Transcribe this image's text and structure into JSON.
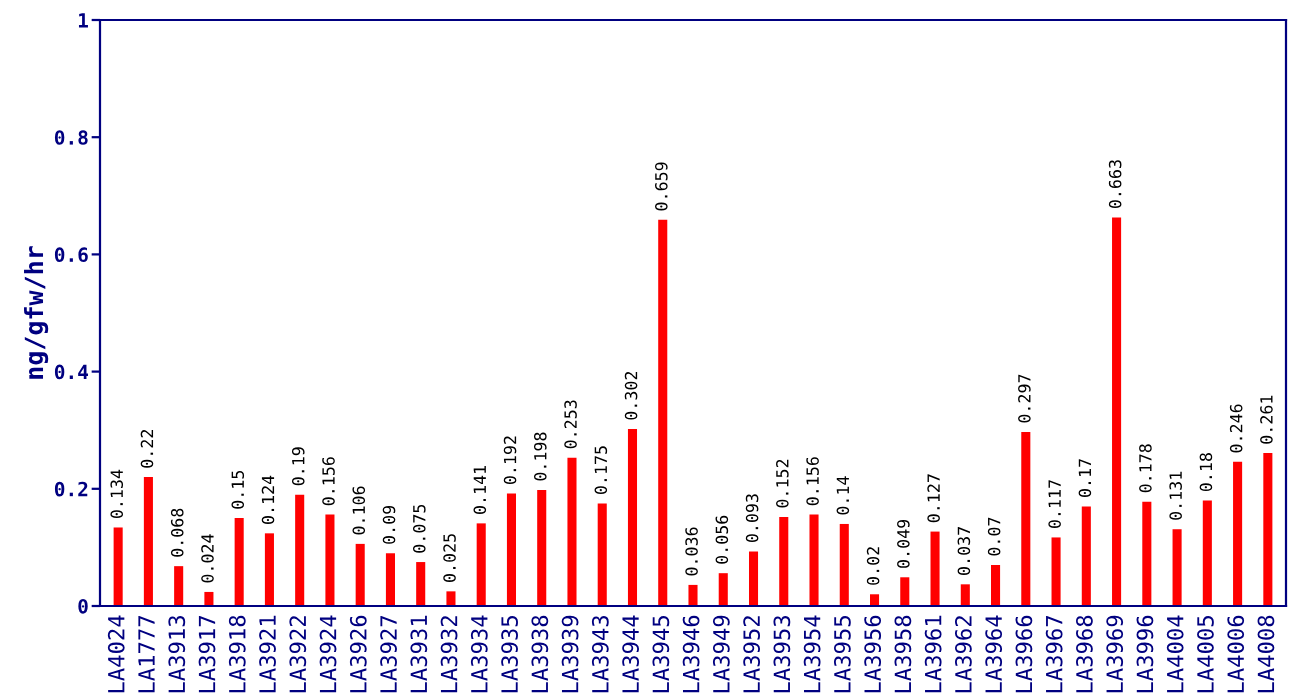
{
  "chart_data": {
    "type": "bar",
    "ylabel": "ng/gfw/hr",
    "categories": [
      "LA4024",
      "LA1777",
      "LA3913",
      "LA3917",
      "LA3918",
      "LA3921",
      "LA3922",
      "LA3924",
      "LA3926",
      "LA3927",
      "LA3931",
      "LA3932",
      "LA3934",
      "LA3935",
      "LA3938",
      "LA3939",
      "LA3943",
      "LA3944",
      "LA3945",
      "LA3946",
      "LA3949",
      "LA3952",
      "LA3953",
      "LA3954",
      "LA3955",
      "LA3956",
      "LA3958",
      "LA3961",
      "LA3962",
      "LA3964",
      "LA3966",
      "LA3967",
      "LA3968",
      "LA3969",
      "LA3996",
      "LA4004",
      "LA4005",
      "LA4006",
      "LA4008"
    ],
    "values": [
      0.134,
      0.22,
      0.068,
      0.024,
      0.15,
      0.124,
      0.19,
      0.156,
      0.106,
      0.09,
      0.075,
      0.025,
      0.141,
      0.192,
      0.198,
      0.253,
      0.175,
      0.302,
      0.659,
      0.036,
      0.056,
      0.093,
      0.152,
      0.156,
      0.14,
      0.02,
      0.049,
      0.127,
      0.037,
      0.07,
      0.297,
      0.117,
      0.17,
      0.663,
      0.178,
      0.131,
      0.18,
      0.246,
      0.261
    ],
    "color": "#ff0000",
    "ylim": [
      0,
      1
    ],
    "yticks": [
      0,
      0.2,
      0.4,
      0.6,
      0.8,
      1
    ],
    "data_labels": true,
    "grid": false
  }
}
